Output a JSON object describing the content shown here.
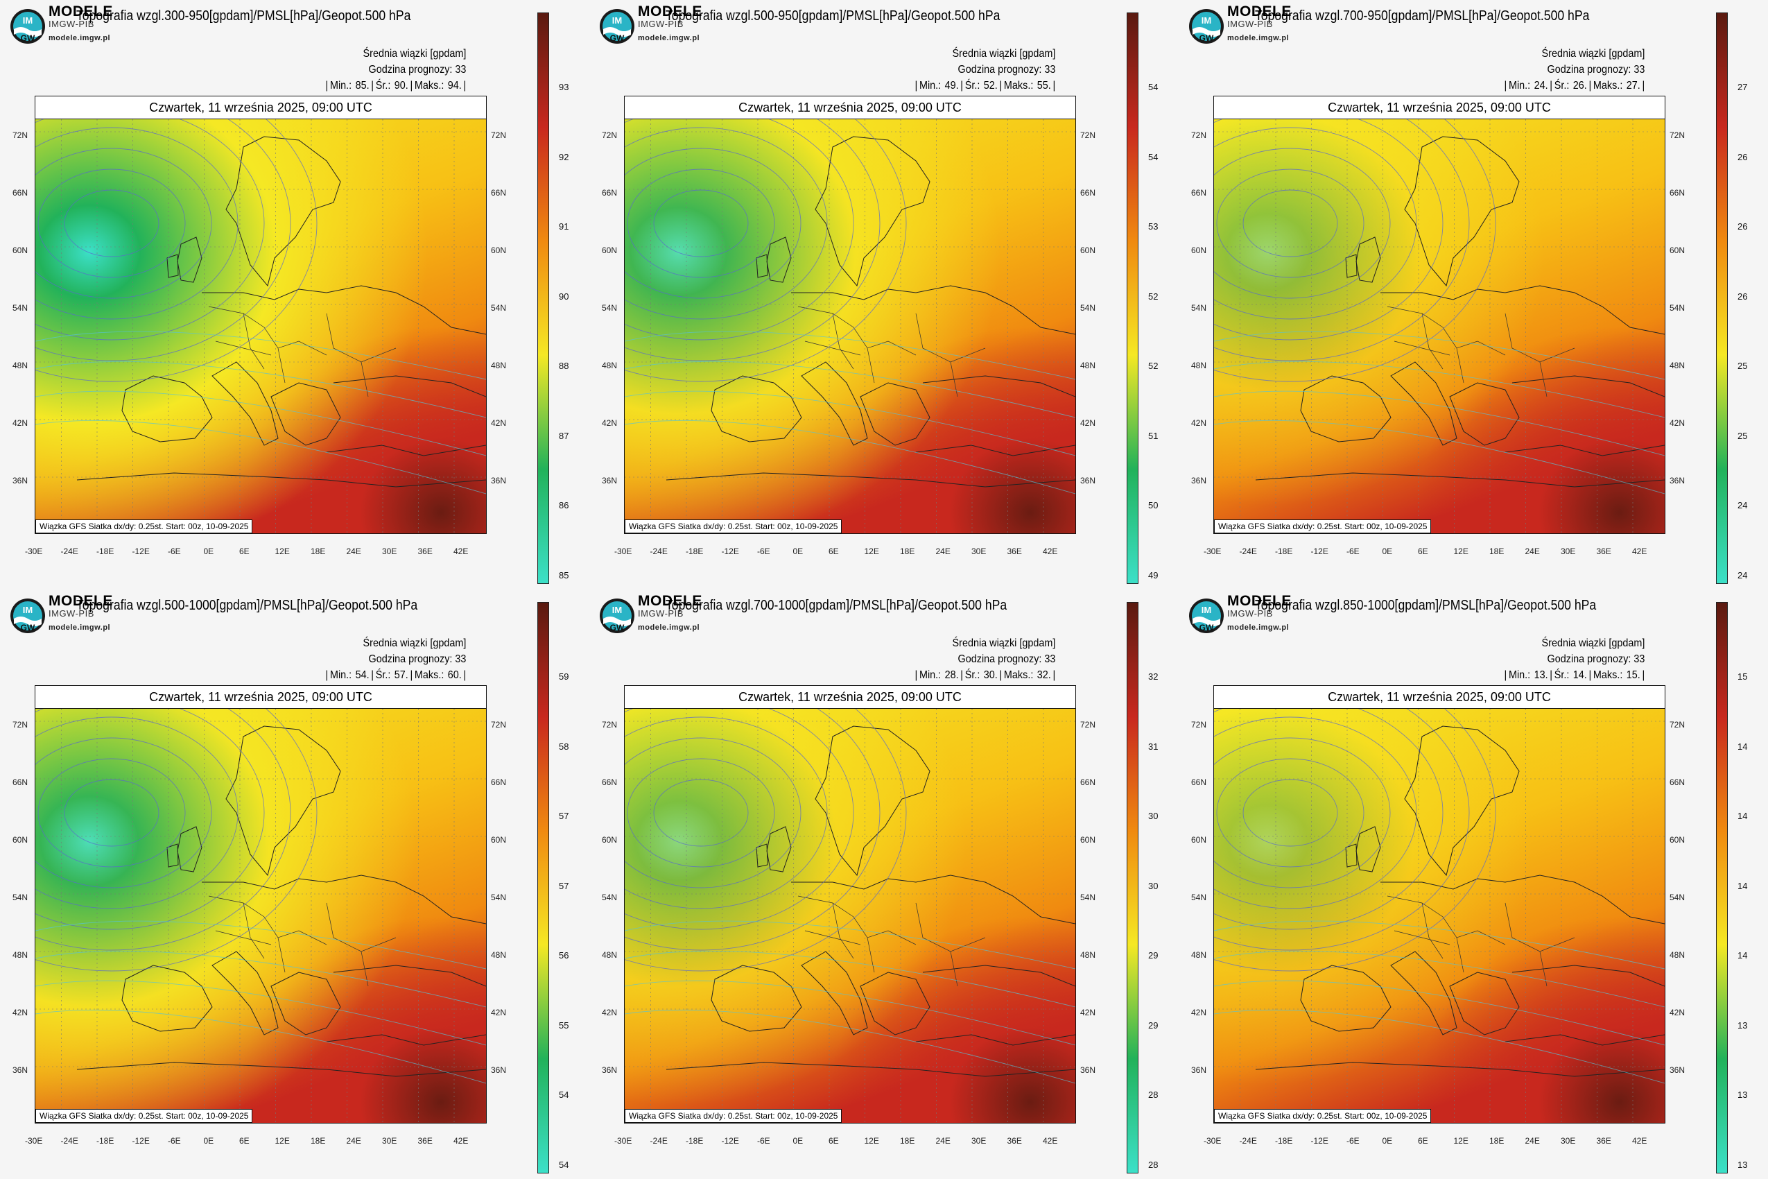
{
  "layout": {
    "columns": 3,
    "rows": 2
  },
  "common": {
    "logo_text": "IM GW",
    "brand": "MODELE",
    "brand_sub": "IMGW-PIB",
    "url": "modele.imgw.pl",
    "title_suffix": "[gpdam]/PMSL[hPa]/Geopot.500 hPa",
    "ensemble_label": "Średnia wiązki [gpdam]",
    "forecast_hour_label": "Godzina prognozy: 33",
    "date": "Czwartek, 11 września 2025, 09:00 UTC",
    "footnote": "Wiązka GFS Siatka dx/dy: 0.25st. Start: 00z, 10-09-2025",
    "lat_labels": [
      "72N",
      "66N",
      "60N",
      "54N",
      "48N",
      "42N",
      "36N"
    ],
    "lon_labels": [
      "-30E",
      "-24E",
      "-18E",
      "-12E",
      "-6E",
      "0E",
      "6E",
      "12E",
      "18E",
      "24E",
      "30E",
      "36E",
      "42E"
    ],
    "min_label": "Min.:",
    "mean_label": "Śr.:",
    "max_label": "Maks.:",
    "colors": {
      "low": "#3ce0c8",
      "mid_green": "#22b25a",
      "yellow": "#f5e824",
      "orange": "#f08a10",
      "red": "#c8281e",
      "dark": "#5a1a10",
      "contour": "#5a6acc",
      "contour_light": "#56c3d8"
    }
  },
  "panels": [
    {
      "title": "Topografia wzgl.300-950",
      "min": "85.",
      "mean": "90.",
      "max": "94.",
      "colorbar_labels": [
        "93",
        "92",
        "91",
        "90",
        "88",
        "87",
        "86",
        "85"
      ],
      "green_strength": 1.0
    },
    {
      "title": "Topografia wzgl.500-950",
      "min": "49.",
      "mean": "52.",
      "max": "55.",
      "colorbar_labels": [
        "54",
        "54",
        "53",
        "52",
        "52",
        "51",
        "50",
        "49"
      ],
      "green_strength": 0.85
    },
    {
      "title": "Topografia wzgl.700-950",
      "min": "24.",
      "mean": "26.",
      "max": "27.",
      "colorbar_labels": [
        "27",
        "26",
        "26",
        "26",
        "25",
        "25",
        "24",
        "24"
      ],
      "green_strength": 0.45
    },
    {
      "title": "Topografia wzgl.500-1000",
      "min": "54.",
      "mean": "57.",
      "max": "60.",
      "colorbar_labels": [
        "59",
        "58",
        "57",
        "57",
        "56",
        "55",
        "54",
        "54"
      ],
      "green_strength": 0.9
    },
    {
      "title": "Topografia wzgl.700-1000",
      "min": "28.",
      "mean": "30.",
      "max": "32.",
      "colorbar_labels": [
        "32",
        "31",
        "30",
        "30",
        "29",
        "29",
        "28",
        "28"
      ],
      "green_strength": 0.55
    },
    {
      "title": "Topografia wzgl.850-1000",
      "min": "13.",
      "mean": "14.",
      "max": "15.",
      "colorbar_labels": [
        "15",
        "14",
        "14",
        "14",
        "14",
        "13",
        "13",
        "13"
      ],
      "green_strength": 0.35
    }
  ]
}
